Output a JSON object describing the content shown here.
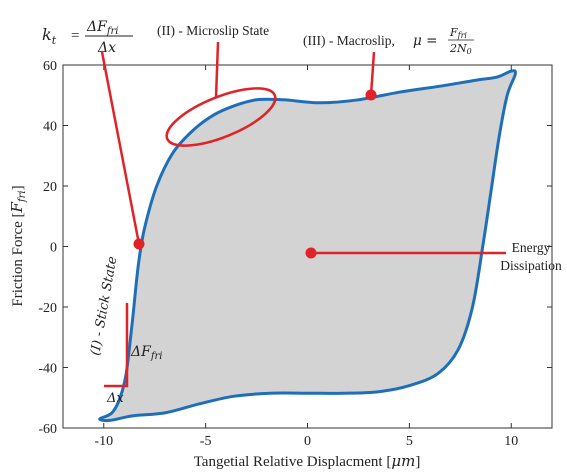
{
  "chart_data": {
    "type": "line",
    "xlabel": "Tangetial Relative Displacment [",
    "xlabel_unit": "μm",
    "xlabel_close": "]",
    "ylabel": "Friction Force [",
    "ylabel_unit": "F",
    "ylabel_sub": "fri",
    "ylabel_close": "]",
    "xlim": [
      -12,
      12
    ],
    "ylim": [
      -60,
      60
    ],
    "x_ticks": [
      -10,
      -5,
      0,
      5,
      10
    ],
    "y_ticks": [
      60,
      40,
      20,
      0,
      -20,
      -40,
      -60
    ],
    "x_tick_labels": [
      "-10",
      "-5",
      "0",
      "5",
      "10"
    ],
    "y_tick_labels": [
      "60",
      "40",
      "20",
      "0",
      "-20",
      "-40",
      "-60"
    ],
    "grid": false,
    "fill_color": "#d3d3d3",
    "loop_color": "#1f6fb8",
    "annotation_color": "#e02328",
    "hysteresis_loop": [
      [
        -10.2,
        -57
      ],
      [
        -9.6,
        -55
      ],
      [
        -9.2,
        -50
      ],
      [
        -8.9,
        -42
      ],
      [
        -8.6,
        -25
      ],
      [
        -8.3,
        -6
      ],
      [
        -8.0,
        6
      ],
      [
        -7.4,
        20
      ],
      [
        -6.6,
        31
      ],
      [
        -5.6,
        38.5
      ],
      [
        -4.6,
        43.5
      ],
      [
        -3.6,
        46.5
      ],
      [
        -2.5,
        48.5
      ],
      [
        -1.2,
        48.5
      ],
      [
        0.6,
        47.5
      ],
      [
        2.5,
        48.5
      ],
      [
        4.5,
        51
      ],
      [
        6.5,
        53
      ],
      [
        8.3,
        55
      ],
      [
        9.3,
        56
      ],
      [
        10.0,
        58
      ],
      [
        10.2,
        57
      ],
      [
        9.8,
        50
      ],
      [
        9.4,
        36
      ],
      [
        9.0,
        18
      ],
      [
        8.6,
        0
      ],
      [
        8.1,
        -20
      ],
      [
        7.4,
        -34
      ],
      [
        6.4,
        -42
      ],
      [
        5.0,
        -46
      ],
      [
        3.5,
        -48
      ],
      [
        1.8,
        -48.5
      ],
      [
        0.0,
        -48.5
      ],
      [
        -1.8,
        -48.5
      ],
      [
        -3.6,
        -49.5
      ],
      [
        -5.3,
        -52
      ],
      [
        -7.0,
        -55
      ],
      [
        -8.6,
        -56
      ],
      [
        -9.7,
        -57.5
      ],
      [
        -10.2,
        -57
      ]
    ]
  },
  "annotations": {
    "stiffness_lhs": "k",
    "stiffness_sub": "t",
    "stiffness_num": "ΔF",
    "stiffness_num_sub": "fri",
    "stiffness_den": "Δx",
    "microslip_label": "(II) - Microslip State",
    "macroslip_label": "(III) - Macroslip,",
    "mu_symbol": "μ =",
    "mu_num": "F",
    "mu_num_sub": "fri",
    "mu_den": "2N",
    "mu_den_sub": "0",
    "stick_label": "(I) -  Stick State",
    "delta_f": "ΔF",
    "delta_f_sub": "fri",
    "delta_x": "Δx",
    "energy_line1": "Energy",
    "energy_line2": "Dissipation"
  }
}
